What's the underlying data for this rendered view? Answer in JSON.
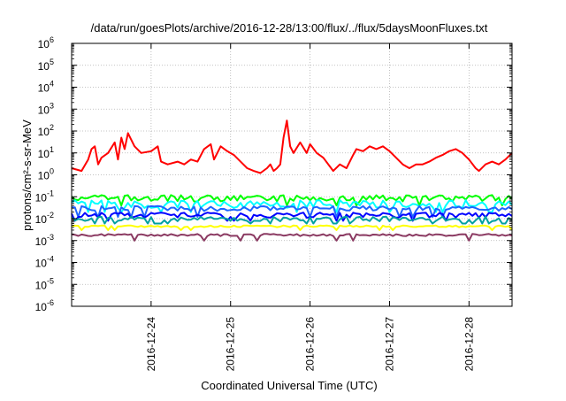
{
  "chart_data": {
    "type": "line",
    "title": "/data/run/goesPlots/archive/2016-12-28/13:00/flux/../flux/5daysMoonFluxes.txt",
    "xlabel": "Coordinated Universal Time (UTC)",
    "ylabel": "protons/cm²-s-sr-MeV",
    "y_scale": "log",
    "ylim": [
      1e-06,
      1000000.0
    ],
    "y_ticks": [
      {
        "base": "10",
        "exp": "-6",
        "value": 1e-06
      },
      {
        "base": "10",
        "exp": "-5",
        "value": 1e-05
      },
      {
        "base": "10",
        "exp": "-4",
        "value": 0.0001
      },
      {
        "base": "10",
        "exp": "-3",
        "value": 0.001
      },
      {
        "base": "10",
        "exp": "-2",
        "value": 0.01
      },
      {
        "base": "10",
        "exp": "-1",
        "value": 0.1
      },
      {
        "base": "10",
        "exp": "0",
        "value": 1
      },
      {
        "base": "10",
        "exp": "1",
        "value": 10
      },
      {
        "base": "10",
        "exp": "2",
        "value": 100
      },
      {
        "base": "10",
        "exp": "3",
        "value": 1000
      },
      {
        "base": "10",
        "exp": "4",
        "value": 10000
      },
      {
        "base": "10",
        "exp": "5",
        "value": 100000
      },
      {
        "base": "10",
        "exp": "6",
        "value": 1000000
      }
    ],
    "xlim": [
      "2016-12-23T00:00",
      "2016-12-28T13:00"
    ],
    "x_ticks": [
      "2016-12-24",
      "2016-12-25",
      "2016-12-26",
      "2016-12-27",
      "2016-12-28"
    ],
    "grid": true,
    "series": [
      {
        "color": "#ff0000",
        "points": [
          [
            "2016-12-23T00:00",
            2
          ],
          [
            "2016-12-23T03:00",
            1.5
          ],
          [
            "2016-12-23T05:00",
            5
          ],
          [
            "2016-12-23T06:00",
            15
          ],
          [
            "2016-12-23T07:00",
            20
          ],
          [
            "2016-12-23T08:00",
            3
          ],
          [
            "2016-12-23T09:00",
            6
          ],
          [
            "2016-12-23T11:00",
            10
          ],
          [
            "2016-12-23T13:00",
            30
          ],
          [
            "2016-12-23T14:00",
            5
          ],
          [
            "2016-12-23T15:00",
            50
          ],
          [
            "2016-12-23T16:00",
            15
          ],
          [
            "2016-12-23T17:00",
            80
          ],
          [
            "2016-12-23T19:00",
            20
          ],
          [
            "2016-12-23T21:00",
            10
          ],
          [
            "2016-12-24T00:00",
            12
          ],
          [
            "2016-12-24T02:00",
            20
          ],
          [
            "2016-12-24T03:00",
            4
          ],
          [
            "2016-12-24T05:00",
            3
          ],
          [
            "2016-12-24T08:00",
            4
          ],
          [
            "2016-12-24T10:00",
            3
          ],
          [
            "2016-12-24T12:00",
            5
          ],
          [
            "2016-12-24T14:00",
            4
          ],
          [
            "2016-12-24T16:00",
            15
          ],
          [
            "2016-12-24T18:00",
            25
          ],
          [
            "2016-12-24T19:00",
            5
          ],
          [
            "2016-12-24T21:00",
            20
          ],
          [
            "2016-12-24T23:00",
            12
          ],
          [
            "2016-12-25T01:00",
            8
          ],
          [
            "2016-12-25T03:00",
            4
          ],
          [
            "2016-12-25T05:00",
            2
          ],
          [
            "2016-12-25T07:00",
            1.5
          ],
          [
            "2016-12-25T09:00",
            1.2
          ],
          [
            "2016-12-25T11:00",
            2
          ],
          [
            "2016-12-25T12:00",
            3
          ],
          [
            "2016-12-25T13:00",
            1.5
          ],
          [
            "2016-12-25T14:00",
            2
          ],
          [
            "2016-12-25T15:00",
            3
          ],
          [
            "2016-12-25T16:00",
            50
          ],
          [
            "2016-12-25T17:00",
            300
          ],
          [
            "2016-12-25T18:00",
            20
          ],
          [
            "2016-12-25T19:00",
            10
          ],
          [
            "2016-12-25T21:00",
            30
          ],
          [
            "2016-12-25T23:00",
            10
          ],
          [
            "2016-12-26T00:00",
            25
          ],
          [
            "2016-12-26T02:00",
            10
          ],
          [
            "2016-12-26T04:00",
            6
          ],
          [
            "2016-12-26T07:00",
            1.5
          ],
          [
            "2016-12-26T09:00",
            3
          ],
          [
            "2016-12-26T11:00",
            2
          ],
          [
            "2016-12-26T13:00",
            8
          ],
          [
            "2016-12-26T14:00",
            15
          ],
          [
            "2016-12-26T16:00",
            12
          ],
          [
            "2016-12-26T18:00",
            20
          ],
          [
            "2016-12-26T20:00",
            15
          ],
          [
            "2016-12-26T22:00",
            20
          ],
          [
            "2016-12-27T00:00",
            12
          ],
          [
            "2016-12-27T02:00",
            6
          ],
          [
            "2016-12-27T04:00",
            3
          ],
          [
            "2016-12-27T06:00",
            2
          ],
          [
            "2016-12-27T08:00",
            3
          ],
          [
            "2016-12-27T10:00",
            3
          ],
          [
            "2016-12-27T12:00",
            4
          ],
          [
            "2016-12-27T14:00",
            6
          ],
          [
            "2016-12-27T16:00",
            8
          ],
          [
            "2016-12-27T18:00",
            12
          ],
          [
            "2016-12-27T20:00",
            15
          ],
          [
            "2016-12-27T22:00",
            10
          ],
          [
            "2016-12-28T00:00",
            5
          ],
          [
            "2016-12-28T02:00",
            2
          ],
          [
            "2016-12-28T03:00",
            1.5
          ],
          [
            "2016-12-28T05:00",
            3
          ],
          [
            "2016-12-28T07:00",
            4
          ],
          [
            "2016-12-28T09:00",
            3
          ],
          [
            "2016-12-28T11:00",
            5
          ],
          [
            "2016-12-28T13:00",
            10
          ]
        ]
      },
      {
        "color": "#00ff00",
        "mean": 0.09,
        "ripple": 0.06,
        "drops": 0.05
      },
      {
        "color": "#00ffff",
        "mean": 0.05,
        "ripple": 0.04,
        "drops": 0.03
      },
      {
        "color": "#1e64ff",
        "mean": 0.03,
        "ripple": 0.015,
        "drops": 0.018
      },
      {
        "color": "#0000ff",
        "mean": 0.015,
        "ripple": 0.008,
        "drops": 0.007
      },
      {
        "color": "#00a0a0",
        "mean": 0.01,
        "ripple": 0.005,
        "drops": 0.004
      },
      {
        "color": "#ffff00",
        "mean": 0.0045,
        "ripple": 0.0008,
        "drops": 0.0015
      },
      {
        "color": "#8b3a62",
        "mean": 0.0018,
        "ripple": 0.0004,
        "drops": 0.0008
      }
    ]
  }
}
